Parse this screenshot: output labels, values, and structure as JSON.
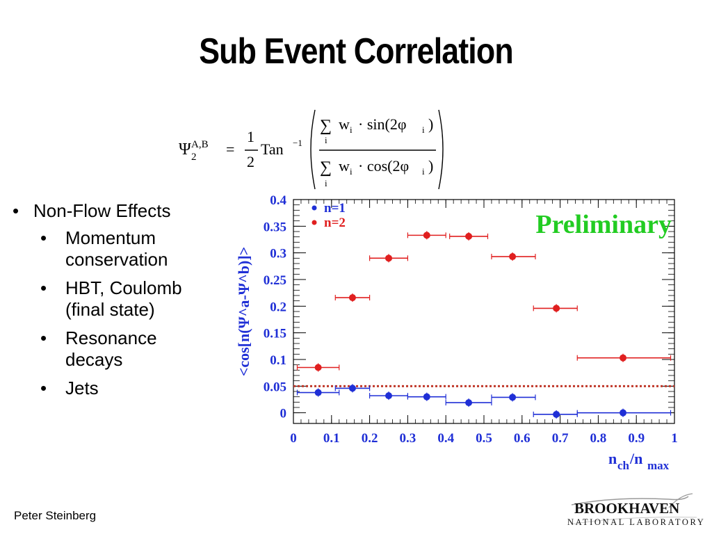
{
  "slide": {
    "title": "Sub Event Correlation",
    "author": "Peter Steinberg",
    "logo_line1": "BROOKHAVEN",
    "logo_line2": "NATIONAL LABORATORY"
  },
  "formula": {
    "psi": "Ψ",
    "sup": "A,B",
    "sub": "2",
    "eq": "=",
    "num": "1",
    "den": "2",
    "fn": "Tan",
    "fn_sup": "−1",
    "sum_sym": "∑",
    "sum_idx": "i",
    "num_term": "w",
    "num_rest": "· sin(2φ",
    "den_rest": "· cos(2φ",
    "idx": "i",
    "close": ")"
  },
  "bullets": {
    "top": "Non-Flow Effects",
    "sub": [
      "Momentum conservation",
      "HBT, Coulomb (final state)",
      "Resonance decays",
      "Jets"
    ]
  },
  "chart_data": {
    "type": "scatter",
    "ylabel": "<cos[n(Ψ^a-Ψ^b)]>",
    "xlabel_main": "n",
    "xlabel_sub1": "ch",
    "xlabel_sep": "/n",
    "xlabel_sub2": "max",
    "watermark": "Preliminary",
    "xlim": [
      0,
      1
    ],
    "ylim": [
      -0.02,
      0.4
    ],
    "x_ticks": [
      "0",
      "0.1",
      "0.2",
      "0.3",
      "0.4",
      "0.5",
      "0.6",
      "0.7",
      "0.8",
      "0.9",
      "1"
    ],
    "y_ticks": [
      "0",
      "0.05",
      "0.1",
      "0.15",
      "0.2",
      "0.25",
      "0.3",
      "0.35",
      "0.4"
    ],
    "reference_line_y": 0.05,
    "series": [
      {
        "name": "n=1",
        "color": "#1f2fd6",
        "points": [
          {
            "x": 0.065,
            "y": 0.038,
            "xlo": 0.01,
            "xhi": 0.12
          },
          {
            "x": 0.155,
            "y": 0.046,
            "xlo": 0.11,
            "xhi": 0.2
          },
          {
            "x": 0.25,
            "y": 0.032,
            "xlo": 0.2,
            "xhi": 0.3
          },
          {
            "x": 0.35,
            "y": 0.03,
            "xlo": 0.3,
            "xhi": 0.4
          },
          {
            "x": 0.46,
            "y": 0.019,
            "xlo": 0.4,
            "xhi": 0.52
          },
          {
            "x": 0.575,
            "y": 0.029,
            "xlo": 0.52,
            "xhi": 0.635
          },
          {
            "x": 0.69,
            "y": -0.003,
            "xlo": 0.63,
            "xhi": 0.745
          },
          {
            "x": 0.865,
            "y": 0.0,
            "xlo": 0.745,
            "xhi": 0.99
          }
        ]
      },
      {
        "name": "n=2",
        "color": "#e01f1f",
        "points": [
          {
            "x": 0.065,
            "y": 0.085,
            "xlo": 0.01,
            "xhi": 0.12
          },
          {
            "x": 0.155,
            "y": 0.216,
            "xlo": 0.11,
            "xhi": 0.2
          },
          {
            "x": 0.25,
            "y": 0.29,
            "xlo": 0.2,
            "xhi": 0.3
          },
          {
            "x": 0.35,
            "y": 0.333,
            "xlo": 0.3,
            "xhi": 0.4
          },
          {
            "x": 0.46,
            "y": 0.331,
            "xlo": 0.41,
            "xhi": 0.51
          },
          {
            "x": 0.575,
            "y": 0.293,
            "xlo": 0.52,
            "xhi": 0.635
          },
          {
            "x": 0.69,
            "y": 0.196,
            "xlo": 0.63,
            "xhi": 0.745
          },
          {
            "x": 0.865,
            "y": 0.103,
            "xlo": 0.745,
            "xhi": 0.99
          }
        ]
      }
    ],
    "colors": {
      "axis_text": "#1f2fd6",
      "reference_line": "#c0392b",
      "watermark": "#22cc22"
    }
  }
}
